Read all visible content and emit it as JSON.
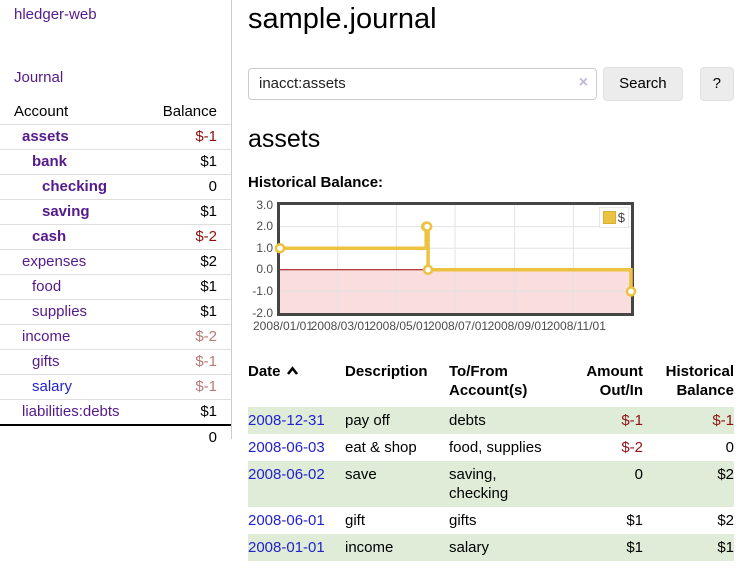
{
  "app": {
    "title": "hledger-web"
  },
  "sidebar": {
    "nav": {
      "journal": "Journal"
    },
    "accounts_table": {
      "headers": {
        "account": "Account",
        "balance": "Balance"
      },
      "rows": [
        {
          "name": "assets",
          "balance": "$-1",
          "level": 0,
          "bold": true
        },
        {
          "name": "bank",
          "balance": "$1",
          "level": 1,
          "bold": true
        },
        {
          "name": "checking",
          "balance": "0",
          "level": 2,
          "bold": true
        },
        {
          "name": "saving",
          "balance": "$1",
          "level": 2,
          "bold": true
        },
        {
          "name": "cash",
          "balance": "$-2",
          "level": 1,
          "bold": true
        },
        {
          "name": "expenses",
          "balance": "$2",
          "level": 0,
          "bold": false
        },
        {
          "name": "food",
          "balance": "$1",
          "level": 1,
          "bold": false
        },
        {
          "name": "supplies",
          "balance": "$1",
          "level": 1,
          "bold": false
        },
        {
          "name": "income",
          "balance": "$-2",
          "level": 0,
          "bold": false
        },
        {
          "name": "gifts",
          "balance": "$-1",
          "level": 1,
          "bold": false
        },
        {
          "name": "salary",
          "balance": "$-1",
          "level": 1,
          "bold": false,
          "link_color": "blue"
        },
        {
          "name": "liabilities:debts",
          "balance": "$1",
          "level": 0,
          "bold": false
        }
      ],
      "total": "0"
    }
  },
  "main": {
    "title": "sample.journal",
    "search": {
      "value": "inacct:assets",
      "clear_icon": "×",
      "button": "Search",
      "help": "?"
    },
    "account_heading": "assets",
    "chart_label": "Historical Balance:"
  },
  "chart_data": {
    "type": "line",
    "step": true,
    "title": "Historical Balance:",
    "legend_position": "top-right",
    "grid": true,
    "xlim": [
      "2008-01-01",
      "2008-12-31"
    ],
    "ylim": [
      -2,
      3
    ],
    "yticks": [
      3.0,
      2.0,
      1.0,
      0.0,
      -1.0,
      -2.0
    ],
    "xticks": [
      "2008/01/01",
      "2008/03/01",
      "2008/05/01",
      "2008/07/01",
      "2008/09/01",
      "2008/11/01"
    ],
    "series": [
      {
        "name": "$",
        "color": "#edc240",
        "points": [
          {
            "x": "2008-01-01",
            "y": 1
          },
          {
            "x": "2008-06-01",
            "y": 2
          },
          {
            "x": "2008-06-02",
            "y": 2
          },
          {
            "x": "2008-06-03",
            "y": 0
          },
          {
            "x": "2008-12-31",
            "y": -1
          }
        ]
      }
    ],
    "zero_line_color": "#9a0000",
    "negative_region_color": "#fadddd",
    "grid_color": "#e3e3e3",
    "border_color": "#454545"
  },
  "register": {
    "headers": {
      "date": "Date",
      "description": "Description",
      "accounts": "To/From Account(s)",
      "amount": "Amount Out/In",
      "balance": "Historical Balance"
    },
    "rows": [
      {
        "date": "2008-12-31",
        "description": "pay off",
        "accounts": "debts",
        "amount": "$-1",
        "balance": "$-1"
      },
      {
        "date": "2008-06-03",
        "description": "eat & shop",
        "accounts": "food, supplies",
        "amount": "$-2",
        "balance": "0"
      },
      {
        "date": "2008-06-02",
        "description": "save",
        "accounts": "saving, checking",
        "amount": "0",
        "balance": "$2"
      },
      {
        "date": "2008-06-01",
        "description": "gift",
        "accounts": "gifts",
        "amount": "$1",
        "balance": "$2"
      },
      {
        "date": "2008-01-01",
        "description": "income",
        "accounts": "salary",
        "amount": "$1",
        "balance": "$1"
      }
    ]
  },
  "colors": {
    "link_purple": "#551a8b",
    "link_blue": "#2323cc",
    "negative_strong": "#8c1010",
    "negative_soft": "#b97878",
    "row_shade_green": "#deecd8",
    "series_gold": "#edc240"
  }
}
